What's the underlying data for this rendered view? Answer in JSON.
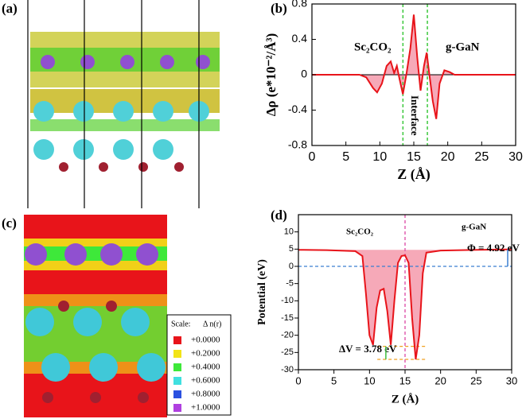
{
  "panel_labels": [
    "(a)",
    "(b)",
    "(c)",
    "(d)"
  ],
  "legend_c": {
    "title": "Scale:",
    "quantity": "Δ n(r)",
    "entries": [
      {
        "label": "+0.0000",
        "color": "#e8141a"
      },
      {
        "label": "+0.2000",
        "color": "#f2e418"
      },
      {
        "label": "+0.4000",
        "color": "#3ee83a"
      },
      {
        "label": "+0.6000",
        "color": "#40e0e0"
      },
      {
        "label": "+0.8000",
        "color": "#2a50e0"
      },
      {
        "label": "+1.0000",
        "color": "#b040e0"
      }
    ]
  },
  "chart_data": [
    {
      "type": "line",
      "xlabel": "Z (Å)",
      "ylabel": "Δρ (e*10⁻²/Å³)",
      "annotations": [
        "Sc₂CO₂",
        "g-GaN",
        "Interface"
      ],
      "x": [
        0,
        5,
        7,
        8,
        9,
        9.6,
        10.3,
        11,
        11.6,
        12.1,
        12.5,
        12.9,
        13.4,
        13.9,
        14.5,
        15.0,
        15.5,
        16.0,
        16.5,
        16.9,
        17.3,
        17.8,
        18.3,
        18.8,
        19.5,
        20.3,
        21,
        25,
        30
      ],
      "values": [
        0,
        0,
        0,
        -0.03,
        -0.15,
        -0.2,
        -0.1,
        0.1,
        0.15,
        0.02,
        0.1,
        -0.05,
        -0.22,
        0,
        0.3,
        0.68,
        0.2,
        -0.18,
        0.1,
        0.25,
        0,
        -0.3,
        -0.5,
        -0.1,
        0.05,
        0.03,
        0,
        0,
        0
      ],
      "color": "#e8141a",
      "fill": "#f6a9b8",
      "xlim": [
        0,
        30
      ],
      "xticks": [
        0,
        5,
        10,
        15,
        20,
        25,
        30
      ],
      "ylim": [
        -0.8,
        0.8
      ],
      "yticks": [
        -0.8,
        -0.4,
        0,
        0.4,
        0.8
      ],
      "vlines": [
        {
          "x": 13.4,
          "color": "#3cc83c"
        },
        {
          "x": 17.0,
          "color": "#3cc83c"
        }
      ],
      "hlines": [],
      "levels": []
    },
    {
      "type": "line",
      "xlabel": "Z (Å)",
      "ylabel": "Potential (eV)",
      "annotations": [
        "Sc₂CO₂",
        "g-GaN",
        "Φ = 4.92 eV",
        "ΔV = 3.78 eV"
      ],
      "x": [
        0,
        4,
        8,
        9,
        9.5,
        10,
        10.5,
        11,
        11.5,
        12,
        12.5,
        13,
        13.5,
        14,
        14.5,
        15,
        15.5,
        16,
        16.5,
        17,
        17.5,
        18,
        20,
        25,
        30
      ],
      "values": [
        4.8,
        4.7,
        4.4,
        3,
        -8,
        -20,
        -22.8,
        -12,
        -7,
        -6.5,
        -13,
        -22.8,
        -10,
        1,
        3,
        3.2,
        1,
        -15,
        -27,
        -20,
        -2,
        4,
        4.6,
        4.8,
        4.92
      ],
      "color": "#e8141a",
      "fill": "#f6a9b8",
      "xlim": [
        0,
        30
      ],
      "xticks": [
        0,
        5,
        10,
        15,
        20,
        25,
        30
      ],
      "ylim": [
        -30,
        15
      ],
      "yticks": [
        -30,
        -25,
        -20,
        -15,
        -10,
        -5,
        0,
        5,
        10
      ],
      "vlines": [
        {
          "x": 15,
          "color": "#e060b0"
        }
      ],
      "hlines": [
        {
          "y": 0,
          "color": "#3a7fd0"
        }
      ],
      "levels": [
        {
          "y": -23.22,
          "color": "#f0a020"
        },
        {
          "y": -27,
          "color": "#f0a020"
        }
      ]
    }
  ]
}
